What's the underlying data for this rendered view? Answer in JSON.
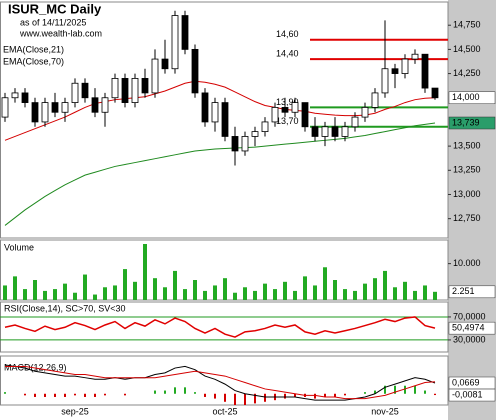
{
  "chart_data": [
    {
      "type": "candlestick",
      "title": "ISUR_MC Daily",
      "subtitle": "as of 14/11/2025",
      "source": "www.wealth-lab.com",
      "categories": [
        null,
        null,
        null,
        null,
        null,
        null,
        null,
        "sep-25",
        null,
        null,
        null,
        null,
        null,
        null,
        null,
        null,
        null,
        null,
        null,
        null,
        null,
        null,
        "oct-25",
        null,
        null,
        null,
        null,
        null,
        null,
        null,
        null,
        null,
        null,
        null,
        null,
        null,
        null,
        null,
        "nov-25",
        null,
        null,
        null,
        null,
        null
      ],
      "open": [
        13800,
        14000,
        14050,
        13950,
        13750,
        13950,
        13850,
        13950,
        14150,
        14000,
        13850,
        14000,
        14200,
        13950,
        14200,
        14050,
        14400,
        14300,
        14850,
        14500,
        14050,
        13750,
        13950,
        13600,
        13450,
        13600,
        13650,
        13750,
        13900,
        13850,
        13950,
        13700,
        13600,
        13700,
        13600,
        13700,
        13800,
        13900,
        14050,
        14300,
        14250,
        14400,
        14450,
        14100
      ],
      "high": [
        14050,
        14100,
        14100,
        14000,
        14000,
        14050,
        14000,
        14200,
        14200,
        14100,
        14050,
        14250,
        14250,
        14250,
        14300,
        14500,
        14600,
        14900,
        14900,
        14550,
        14100,
        14000,
        14000,
        13700,
        13650,
        13700,
        13800,
        13950,
        14000,
        14000,
        13950,
        13800,
        13750,
        13800,
        13750,
        13850,
        13950,
        14100,
        14800,
        14350,
        14450,
        14500,
        14450,
        14100
      ],
      "low": [
        13750,
        13950,
        13900,
        13700,
        13700,
        13800,
        13750,
        13900,
        13950,
        13800,
        13700,
        13950,
        13900,
        13900,
        14000,
        14000,
        14250,
        14250,
        14450,
        14000,
        13700,
        13650,
        13550,
        13300,
        13400,
        13500,
        13600,
        13700,
        13800,
        13800,
        13650,
        13550,
        13500,
        13550,
        13550,
        13650,
        13750,
        13850,
        14000,
        14100,
        14200,
        14350,
        14050,
        13980
      ],
      "close": [
        14000,
        14050,
        13950,
        13750,
        13950,
        13850,
        13950,
        14150,
        14000,
        13850,
        14000,
        14200,
        13950,
        14200,
        14050,
        14400,
        14300,
        14850,
        14500,
        14050,
        13750,
        13950,
        13600,
        13450,
        13600,
        13650,
        13750,
        13900,
        13850,
        13950,
        13700,
        13600,
        13700,
        13600,
        13700,
        13800,
        13900,
        14050,
        14300,
        14250,
        14400,
        14450,
        14100,
        14000
      ],
      "series": [
        {
          "name": "EMA(Close,21)",
          "color": "#d40000",
          "values": [
            13560,
            13600,
            13640,
            13680,
            13720,
            13760,
            13800,
            13850,
            13900,
            13940,
            13960,
            13980,
            13990,
            14000,
            14010,
            14040,
            14070,
            14110,
            14150,
            14170,
            14160,
            14140,
            14110,
            14060,
            14010,
            13960,
            13920,
            13900,
            13880,
            13870,
            13860,
            13840,
            13830,
            13820,
            13815,
            13815,
            13820,
            13840,
            13880,
            13910,
            13950,
            13980,
            13995,
            14000
          ]
        },
        {
          "name": "EMA(Close,70)",
          "color": "#1f8a1f",
          "values": [
            12680,
            12760,
            12840,
            12910,
            12980,
            13040,
            13100,
            13150,
            13200,
            13230,
            13260,
            13290,
            13310,
            13330,
            13350,
            13370,
            13390,
            13410,
            13430,
            13450,
            13460,
            13470,
            13475,
            13480,
            13485,
            13490,
            13500,
            13510,
            13520,
            13530,
            13540,
            13550,
            13560,
            13570,
            13580,
            13595,
            13610,
            13630,
            13650,
            13670,
            13690,
            13710,
            13725,
            13739
          ]
        }
      ],
      "ylim": [
        12550,
        14990
      ],
      "yticks": [
        {
          "value": 12750,
          "label": "12,750"
        },
        {
          "value": 13000,
          "label": "13,000"
        },
        {
          "value": 13250,
          "label": "13,250"
        },
        {
          "value": 13500,
          "label": "13,500"
        },
        {
          "value": 14250,
          "label": "14,250"
        },
        {
          "value": 14500,
          "label": "14,500"
        },
        {
          "value": 14750,
          "label": "14,750"
        }
      ],
      "last_labels": [
        {
          "value": 14000,
          "label": "14,000",
          "color": "#ffffff"
        },
        {
          "value": 13739,
          "label": "13,739",
          "color": "#2a9d6a"
        }
      ],
      "levels": [
        {
          "value": 14600,
          "label": "14,60",
          "color": "#e00000"
        },
        {
          "value": 14400,
          "label": "14,40",
          "color": "#e00000"
        },
        {
          "value": 13900,
          "label": "13,90",
          "color": "#1f9a1f"
        },
        {
          "value": 13700,
          "label": "13,70",
          "color": "#1f9a1f"
        }
      ]
    },
    {
      "type": "bar",
      "title": "Volume",
      "color": "#22aa22",
      "values": [
        4000,
        6500,
        3000,
        5500,
        2500,
        3000,
        4500,
        2000,
        7000,
        1500,
        3500,
        4000,
        8500,
        5000,
        15400,
        6000,
        3500,
        8000,
        3000,
        5500,
        2500,
        4000,
        6000,
        2000,
        3500,
        2500,
        4500,
        3000,
        5000,
        2500,
        6500,
        4000,
        9000,
        5500,
        3000,
        2500,
        4500,
        6000,
        8000,
        3500,
        5000,
        2500,
        4000,
        2251
      ],
      "ylim": [
        0,
        16500
      ],
      "yticks": [
        {
          "value": 10000,
          "label": "10.000"
        }
      ],
      "last_labels": [
        {
          "value": 2251,
          "label": "2.251",
          "color": "#ffffff"
        }
      ]
    },
    {
      "type": "line",
      "title": "RSI(Close,14), SC>70, SV<30",
      "color": "#e00000",
      "level_color": "#1f9a1f",
      "values": [
        52,
        56,
        50,
        45,
        54,
        48,
        52,
        60,
        55,
        48,
        56,
        62,
        50,
        60,
        54,
        65,
        58,
        68,
        62,
        50,
        42,
        50,
        40,
        35,
        44,
        46,
        50,
        56,
        52,
        56,
        44,
        40,
        46,
        42,
        46,
        50,
        55,
        60,
        66,
        62,
        68,
        70,
        55,
        50.4974
      ],
      "ylim": [
        9,
        96
      ],
      "yticks": [
        {
          "value": 70,
          "label": "70,0000"
        },
        {
          "value": 30,
          "label": "30,0000"
        }
      ],
      "last_labels": [
        {
          "value": 50.4974,
          "label": "50,4974",
          "color": "#ffffff"
        }
      ]
    },
    {
      "type": "macd",
      "title": "MACD(12,26,9)",
      "series": [
        {
          "color": "#000000",
          "values": [
            0.18,
            0.17,
            0.16,
            0.14,
            0.13,
            0.12,
            0.11,
            0.11,
            0.1,
            0.09,
            0.09,
            0.1,
            0.09,
            0.1,
            0.1,
            0.12,
            0.13,
            0.16,
            0.17,
            0.15,
            0.11,
            0.09,
            0.06,
            0.02,
            0,
            -0.01,
            -0.02,
            -0.02,
            -0.02,
            -0.02,
            -0.03,
            -0.04,
            -0.04,
            -0.04,
            -0.04,
            -0.03,
            -0.02,
            0,
            0.04,
            0.06,
            0.08,
            0.1,
            0.09,
            0.0669
          ]
        },
        {
          "color": "#d40000",
          "values": [
            0.17,
            0.17,
            0.17,
            0.16,
            0.15,
            0.14,
            0.13,
            0.12,
            0.12,
            0.11,
            0.1,
            0.1,
            0.1,
            0.1,
            0.1,
            0.1,
            0.11,
            0.12,
            0.13,
            0.14,
            0.13,
            0.12,
            0.11,
            0.09,
            0.07,
            0.05,
            0.03,
            0.02,
            0.01,
            0,
            -0.01,
            -0.01,
            -0.02,
            -0.02,
            -0.03,
            -0.03,
            -0.03,
            -0.02,
            -0.01,
            0.01,
            0.03,
            0.05,
            0.07,
            0.075
          ]
        }
      ],
      "histogram": [
        0.01,
        0,
        -0.01,
        -0.02,
        -0.02,
        -0.02,
        -0.02,
        -0.01,
        -0.02,
        -0.02,
        -0.01,
        0,
        -0.01,
        0,
        0,
        0.02,
        0.02,
        0.04,
        0.04,
        0.01,
        -0.02,
        -0.03,
        -0.05,
        -0.07,
        -0.07,
        -0.06,
        -0.05,
        -0.04,
        -0.03,
        -0.02,
        -0.02,
        -0.03,
        -0.02,
        -0.02,
        -0.01,
        0,
        0.01,
        0.02,
        0.05,
        0.05,
        0.05,
        0.05,
        0.02,
        -0.0081
      ],
      "histogram_colors": [
        "#22aa22",
        "#d40000"
      ],
      "ylim": [
        -0.07,
        0.235
      ],
      "last_labels": [
        {
          "value": 0.0669,
          "label": "0,0669",
          "color": "#ffffff"
        },
        {
          "value": -0.0081,
          "label": "-0,0081",
          "color": "#ffffff"
        }
      ]
    }
  ]
}
